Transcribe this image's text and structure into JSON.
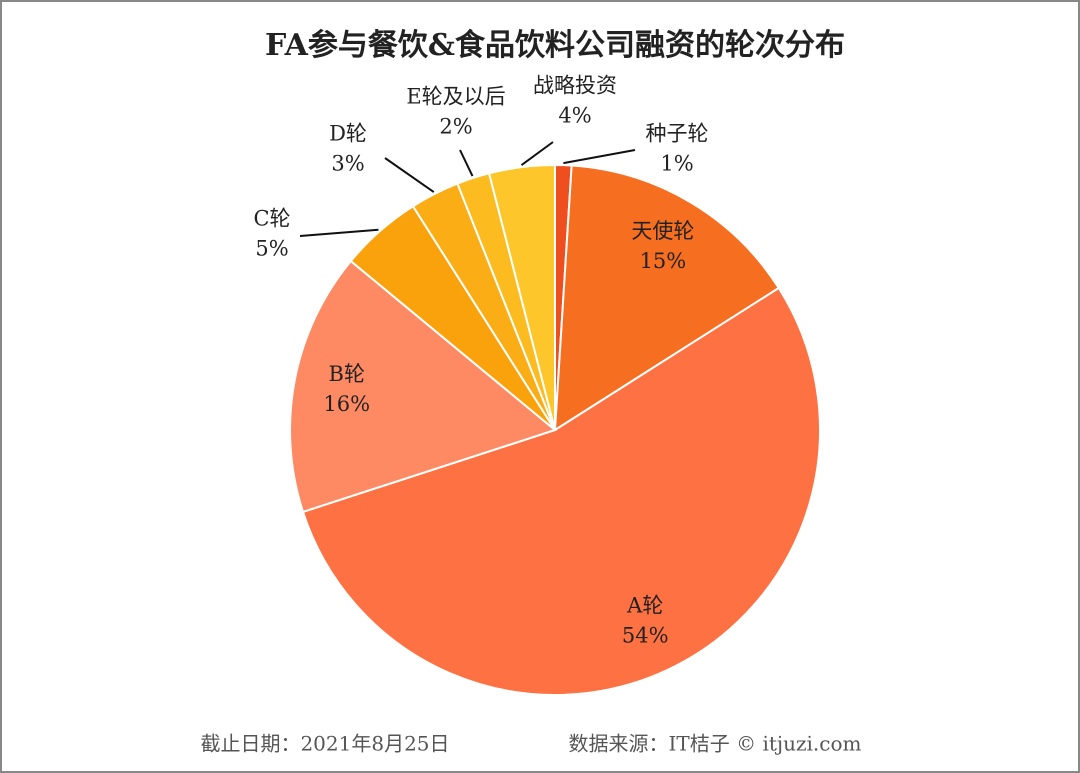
{
  "chart_data": {
    "type": "pie",
    "title": "FA参与餐饮&食品饮料公司融资的轮次分布",
    "categories": [
      "种子轮",
      "天使轮",
      "A轮",
      "B轮",
      "C轮",
      "D轮",
      "E轮及以后",
      "战略投资"
    ],
    "values": [
      1,
      15,
      54,
      16,
      5,
      3,
      2,
      4
    ],
    "value_labels": [
      "1%",
      "15%",
      "54%",
      "16%",
      "5%",
      "3%",
      "2%",
      "4%"
    ],
    "colors": [
      "#ef4e1f",
      "#f66e1f",
      "#fd7142",
      "#fe8a64",
      "#f9a20b",
      "#fbad15",
      "#fcbb1f",
      "#fdc62b"
    ],
    "date_note": "截止日期：2021年8月25日",
    "source": "数据来源：IT桔子 © itjuzi.com"
  }
}
